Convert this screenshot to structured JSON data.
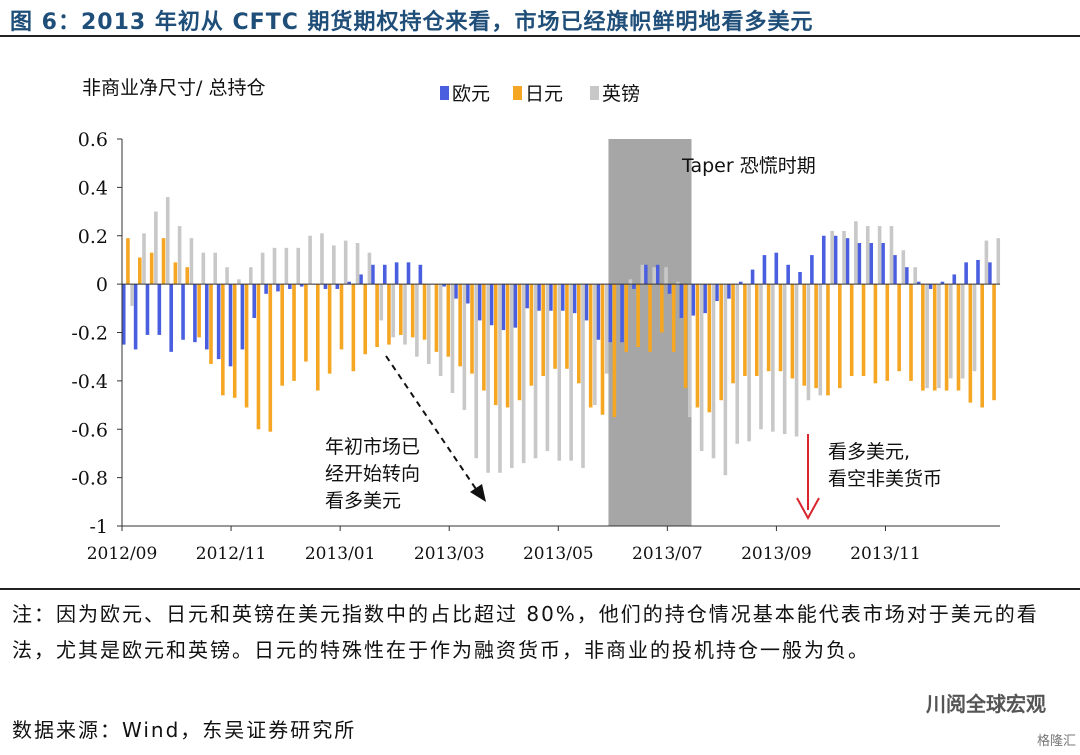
{
  "figure": {
    "title": "图 6：2013 年初从 CFTC 期货期权持仓来看，市场已经旗帜鲜明地看多美元",
    "note": "注：因为欧元、日元和英镑在美元指数中的占比超过 80%，他们的持仓情况基本能代表市场对于美元的看法，尤其是欧元和英镑。日元的特殊性在于作为融资货币，非商业的投机持仓一般为负。",
    "source": "数据来源：Wind，东吴证券研究所",
    "watermark": "川阅全球宏观",
    "watermark2": "格隆汇"
  },
  "chart_data": {
    "type": "bar",
    "ylabel": "非商业净尺寸/ 总持仓",
    "ylim": [
      -1,
      0.6
    ],
    "yticks": [
      "0.6",
      "0.4",
      "0.2",
      "0",
      "-0.2",
      "-0.4",
      "-0.6",
      "-0.8",
      "-1"
    ],
    "xtick_labels": [
      "2012/09",
      "2012/11",
      "2013/01",
      "2013/03",
      "2013/05",
      "2013/07",
      "2013/09",
      "2013/11"
    ],
    "legend_position": "top-center",
    "grid": false,
    "colors": {
      "eur": "#4a5fe0",
      "jpy": "#f5a623",
      "gbp": "#c8c8c8",
      "shade": "#a6a6a6",
      "arrow_red": "#d9262c"
    },
    "series": [
      {
        "name": "欧元",
        "values": [
          -0.25,
          -0.27,
          -0.21,
          -0.21,
          -0.28,
          -0.23,
          -0.24,
          -0.27,
          -0.31,
          -0.34,
          -0.27,
          -0.14,
          -0.04,
          -0.03,
          -0.02,
          -0.01,
          0,
          -0.02,
          -0.02,
          0.01,
          0.04,
          0.08,
          0.08,
          0.09,
          0.09,
          0.08,
          0,
          -0.01,
          -0.06,
          -0.08,
          -0.15,
          -0.17,
          -0.19,
          -0.18,
          -0.1,
          -0.11,
          -0.11,
          -0.11,
          -0.12,
          -0.15,
          -0.23,
          -0.24,
          -0.24,
          -0.02,
          0.08,
          0.08,
          -0.04,
          -0.14,
          -0.13,
          -0.12,
          -0.07,
          -0.06,
          0.01,
          0.06,
          0.12,
          0.13,
          0.08,
          0.05,
          0.12,
          0.2,
          0.2,
          0.19,
          0.17,
          0.17,
          0.17,
          0.12,
          0.07,
          0.01,
          -0.02,
          0.01,
          0.04,
          0.09,
          0.1,
          0.09
        ]
      },
      {
        "name": "日元",
        "values": [
          0.19,
          0.11,
          0.13,
          0.19,
          0.09,
          0.07,
          -0.22,
          -0.33,
          -0.46,
          -0.47,
          -0.51,
          -0.6,
          -0.61,
          -0.42,
          -0.4,
          -0.32,
          -0.44,
          -0.37,
          -0.27,
          -0.36,
          -0.29,
          -0.26,
          -0.25,
          -0.21,
          -0.22,
          -0.23,
          -0.28,
          -0.3,
          -0.34,
          -0.37,
          -0.44,
          -0.5,
          -0.51,
          -0.48,
          -0.42,
          -0.38,
          -0.35,
          -0.35,
          -0.41,
          -0.51,
          -0.54,
          -0.55,
          -0.28,
          -0.26,
          -0.28,
          -0.2,
          -0.28,
          -0.43,
          -0.51,
          -0.53,
          -0.48,
          -0.41,
          -0.38,
          -0.38,
          -0.36,
          -0.36,
          -0.39,
          -0.42,
          -0.43,
          -0.46,
          -0.43,
          -0.38,
          -0.38,
          -0.41,
          -0.4,
          -0.36,
          -0.4,
          -0.44,
          -0.44,
          -0.44,
          -0.44,
          -0.49,
          -0.51,
          -0.48
        ]
      },
      {
        "name": "英镑",
        "values": [
          -0.09,
          0.21,
          0.3,
          0.36,
          0.24,
          0.19,
          0.13,
          0.13,
          0.07,
          0.02,
          0.07,
          0.13,
          0.15,
          0.15,
          0.15,
          0.2,
          0.21,
          0.16,
          0.18,
          0.17,
          0.13,
          -0.15,
          -0.22,
          -0.25,
          -0.3,
          -0.33,
          -0.38,
          -0.45,
          -0.52,
          -0.72,
          -0.78,
          -0.78,
          -0.76,
          -0.74,
          -0.72,
          -0.69,
          -0.73,
          -0.73,
          -0.76,
          -0.5,
          -0.37,
          0,
          0.02,
          0.08,
          0.07,
          0.07,
          0.01,
          -0.55,
          -0.69,
          -0.72,
          -0.79,
          -0.66,
          -0.65,
          -0.6,
          -0.61,
          -0.62,
          -0.63,
          -0.48,
          -0.46,
          0.22,
          0.22,
          0.26,
          0.24,
          0.24,
          0.24,
          0.14,
          0.07,
          -0.43,
          -0.43,
          -0.39,
          -0.39,
          -0.36,
          0.18,
          0.19
        ]
      }
    ],
    "shaded_region": {
      "label": "Taper 恐慌时期",
      "start_index": 41,
      "end_index": 47,
      "x_range": [
        "2013/05",
        "2013/06"
      ]
    },
    "annotations": [
      {
        "text_lines": [
          "年初市场已",
          "经开始转向",
          "看多美元"
        ],
        "arrow": "dashed-black"
      },
      {
        "text_lines": [
          "看多美元,",
          "看空非美货币"
        ],
        "arrow": "solid-red"
      }
    ]
  }
}
